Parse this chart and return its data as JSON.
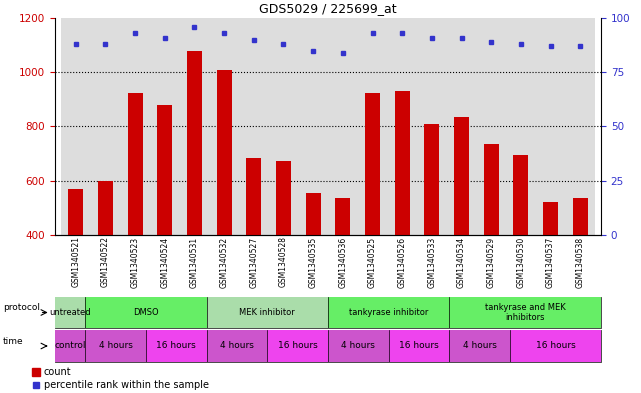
{
  "title": "GDS5029 / 225699_at",
  "samples": [
    "GSM1340521",
    "GSM1340522",
    "GSM1340523",
    "GSM1340524",
    "GSM1340531",
    "GSM1340532",
    "GSM1340527",
    "GSM1340528",
    "GSM1340535",
    "GSM1340536",
    "GSM1340525",
    "GSM1340526",
    "GSM1340533",
    "GSM1340534",
    "GSM1340529",
    "GSM1340530",
    "GSM1340537",
    "GSM1340538"
  ],
  "counts": [
    570,
    600,
    925,
    880,
    1080,
    1010,
    685,
    672,
    555,
    535,
    925,
    930,
    810,
    835,
    735,
    695,
    520,
    535
  ],
  "percentiles": [
    88,
    88,
    93,
    91,
    96,
    93,
    90,
    88,
    85,
    84,
    93,
    93,
    91,
    91,
    89,
    88,
    87,
    87
  ],
  "ylim_left": [
    400,
    1200
  ],
  "ylim_right": [
    0,
    100
  ],
  "yticks_left": [
    400,
    600,
    800,
    1000,
    1200
  ],
  "yticks_right": [
    0,
    25,
    50,
    75,
    100
  ],
  "bar_color": "#cc0000",
  "dot_color": "#3333cc",
  "bg_color": "#ffffff",
  "plot_bg": "#ffffff",
  "sample_bg": "#dddddd",
  "protocol_groups": [
    {
      "label": "untreated",
      "start": 0,
      "end": 1
    },
    {
      "label": "DMSO",
      "start": 1,
      "end": 5
    },
    {
      "label": "MEK inhibitor",
      "start": 5,
      "end": 9
    },
    {
      "label": "tankyrase inhibitor",
      "start": 9,
      "end": 13
    },
    {
      "label": "tankyrase and MEK\ninhibitors",
      "start": 13,
      "end": 18
    }
  ],
  "protocol_color_light": "#aaddaa",
  "protocol_color_bright": "#66ee66",
  "time_groups": [
    {
      "label": "control",
      "start": 0,
      "end": 1
    },
    {
      "label": "4 hours",
      "start": 1,
      "end": 3
    },
    {
      "label": "16 hours",
      "start": 3,
      "end": 5
    },
    {
      "label": "4 hours",
      "start": 5,
      "end": 7
    },
    {
      "label": "16 hours",
      "start": 7,
      "end": 9
    },
    {
      "label": "4 hours",
      "start": 9,
      "end": 11
    },
    {
      "label": "16 hours",
      "start": 11,
      "end": 13
    },
    {
      "label": "4 hours",
      "start": 13,
      "end": 15
    },
    {
      "label": "16 hours",
      "start": 15,
      "end": 18
    }
  ],
  "time_color_4h": "#cc55cc",
  "time_color_16h": "#ee44ee",
  "time_color_ctrl": "#cc55cc"
}
